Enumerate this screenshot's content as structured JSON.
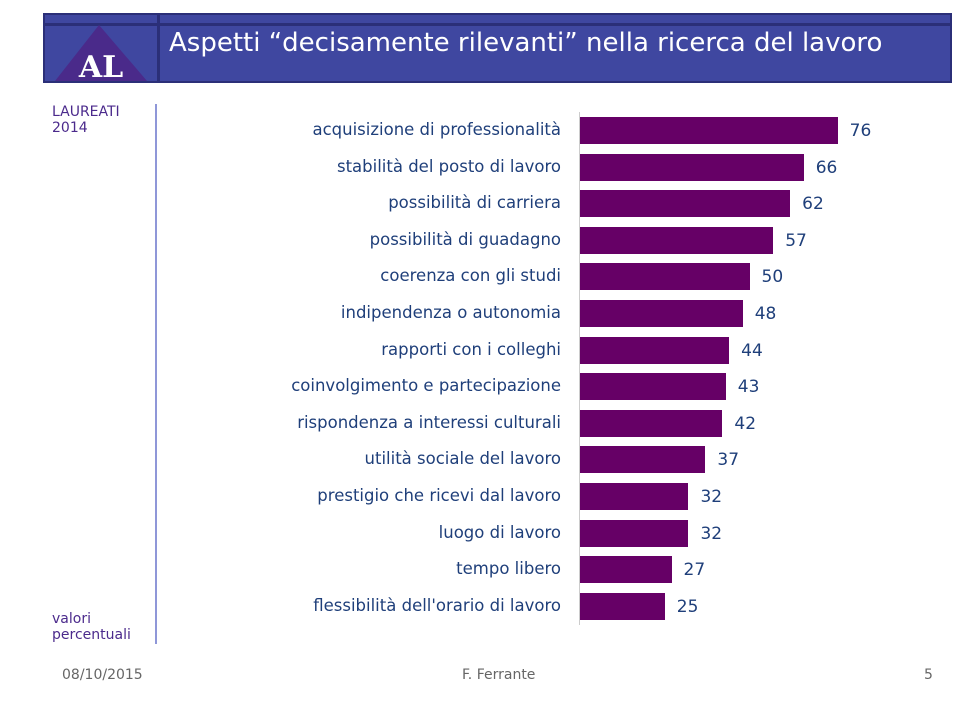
{
  "header": {
    "logo_text": "AL",
    "title": "Aspetti “decisamente rilevanti” nella ricerca del lavoro"
  },
  "side": {
    "top_line1": "LAUREATI",
    "top_line2": "2014",
    "bottom_line1": "valori",
    "bottom_line2": "percentuali"
  },
  "footer": {
    "date": "08/10/2015",
    "author": "F. Ferrante",
    "page": "5"
  },
  "chart_data": {
    "type": "bar",
    "orientation": "horizontal",
    "bar_color": "#660066",
    "categories": [
      "acquisizione di professionalità",
      "stabilità del posto di lavoro",
      "possibilità di carriera",
      "possibilità di guadagno",
      "coerenza con gli studi",
      "indipendenza o autonomia",
      "rapporti con i colleghi",
      "coinvolgimento e partecipazione",
      "rispondenza a interessi culturali",
      "utilità sociale del lavoro",
      "prestigio che ricevi dal lavoro",
      "luogo di lavoro",
      "tempo libero",
      "flessibilità dell'orario di lavoro"
    ],
    "values": [
      76,
      66,
      62,
      57,
      50,
      48,
      44,
      43,
      42,
      37,
      32,
      32,
      27,
      25
    ],
    "grid": false
  }
}
